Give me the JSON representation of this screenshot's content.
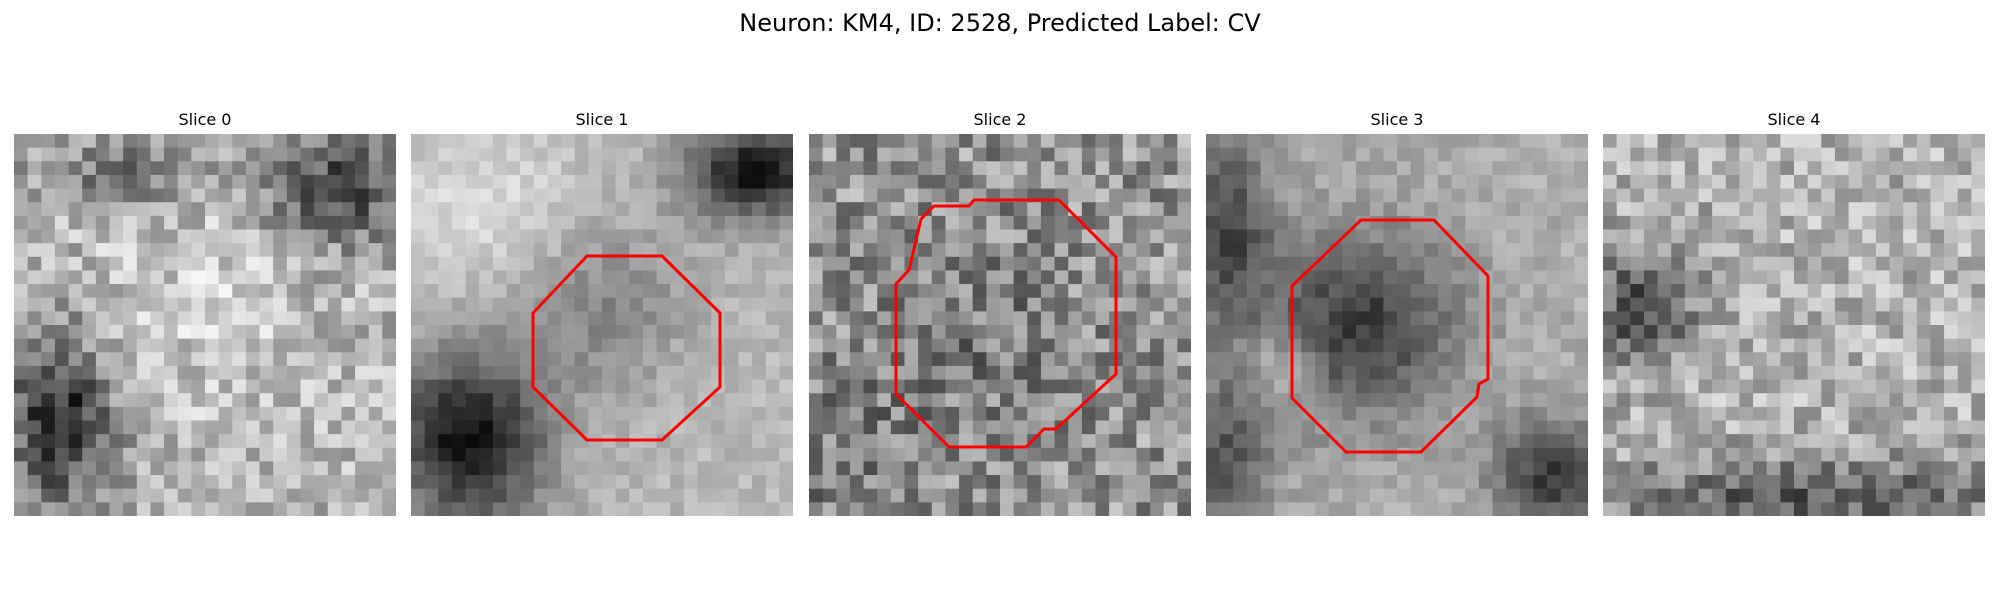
{
  "figure": {
    "title": "Neuron: KM4, ID: 2528, Predicted Label: CV"
  },
  "slices": [
    {
      "title": "Slice 0",
      "has_roi": false
    },
    {
      "title": "Slice 1",
      "has_roi": true
    },
    {
      "title": "Slice 2",
      "has_roi": true
    },
    {
      "title": "Slice 3",
      "has_roi": true
    },
    {
      "title": "Slice 4",
      "has_roi": false
    }
  ],
  "colors": {
    "roi_outline": "#ff0000",
    "background": "#ffffff"
  }
}
